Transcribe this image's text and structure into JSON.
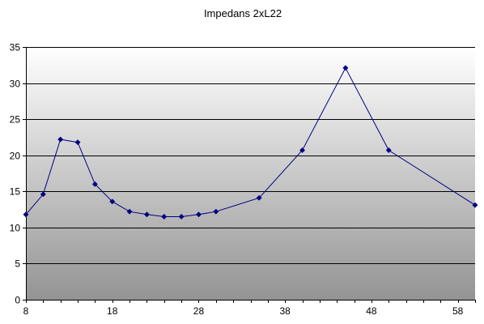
{
  "chart_data": {
    "type": "line",
    "title": "Impedans 2xL22",
    "xlabel": "",
    "ylabel": "",
    "xlim": [
      8,
      60
    ],
    "ylim": [
      0,
      35
    ],
    "x_ticks": [
      8,
      18,
      28,
      38,
      48,
      58
    ],
    "y_ticks": [
      0,
      5,
      10,
      15,
      20,
      25,
      30,
      35
    ],
    "grid": "horizontal",
    "legend": "none",
    "plot_background": "vertical gradient white to gray",
    "series": [
      {
        "color": "#000080",
        "marker": "diamond",
        "x": [
          8,
          10,
          12,
          14,
          16,
          18,
          20,
          22,
          24,
          26,
          28,
          30,
          35,
          40,
          45,
          50,
          60
        ],
        "y": [
          11.8,
          14.6,
          22.2,
          21.8,
          16.0,
          13.6,
          12.2,
          11.8,
          11.5,
          11.5,
          11.8,
          12.2,
          14.1,
          20.7,
          32.1,
          20.7,
          13.1
        ]
      }
    ]
  }
}
